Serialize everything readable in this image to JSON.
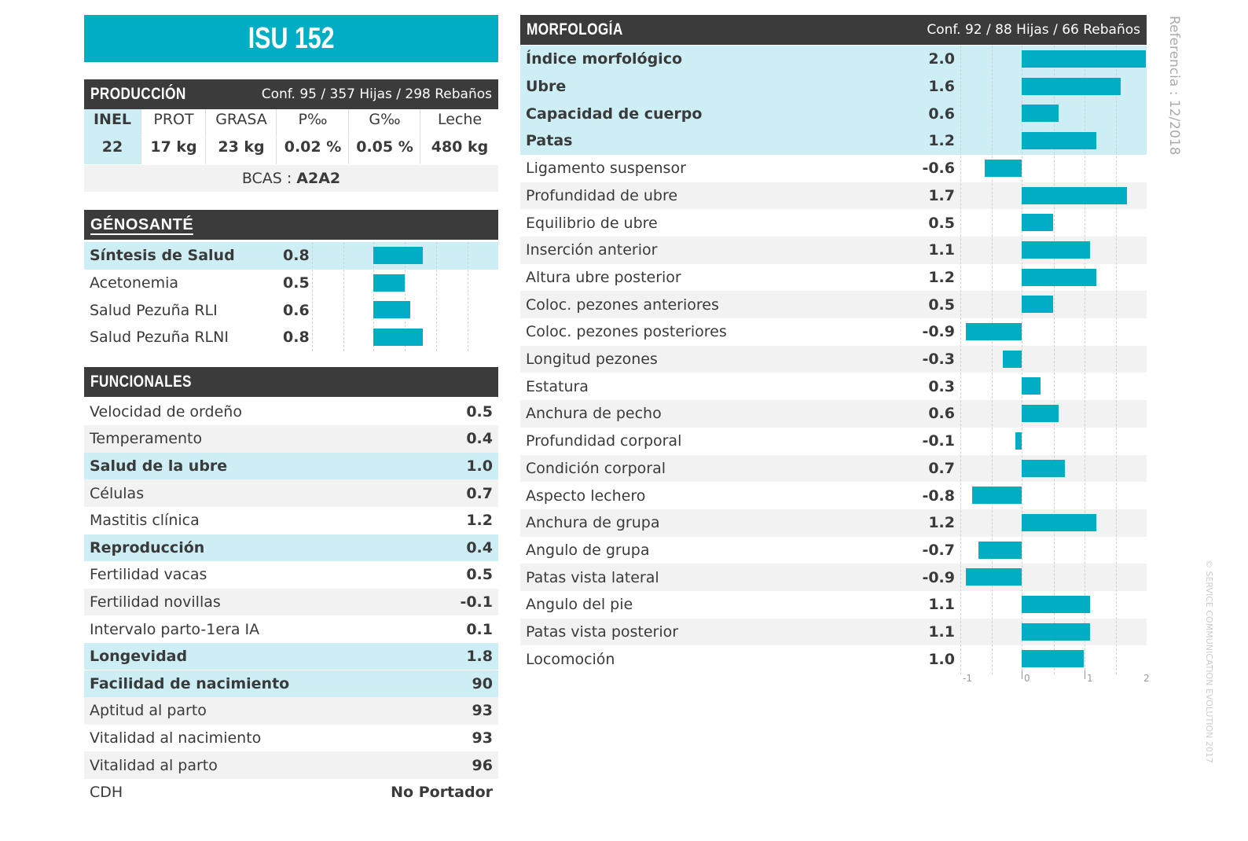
{
  "title": "ISU 152",
  "produccion": {
    "header": "PRODUCCIÓN",
    "conf": "Conf. 95 / 357 Hijas / 298 Rebaños",
    "columns": [
      "INEL",
      "PROT",
      "GRASA",
      "P‰",
      "G‰",
      "Leche"
    ],
    "values": [
      "22",
      "17 kg",
      "23 kg",
      "0.02 %",
      "0.05 %",
      "480 kg"
    ],
    "bcas_label": "BCAS :",
    "bcas_value": "A2A2"
  },
  "genosante": {
    "logo": "GÉNOSANTÉ",
    "rows": [
      {
        "label": "Síntesis de Salud",
        "value": "0.8",
        "num": 0.8,
        "hl": true
      },
      {
        "label": "Acetonemia",
        "value": "0.5",
        "num": 0.5,
        "hl": false
      },
      {
        "label": "Salud Pezuña RLI",
        "value": "0.6",
        "num": 0.6,
        "hl": false
      },
      {
        "label": "Salud Pezuña RLNI",
        "value": "0.8",
        "num": 0.8,
        "hl": false
      }
    ]
  },
  "funcionales": {
    "header": "FUNCIONALES",
    "rows": [
      {
        "label": "Velocidad de ordeño",
        "value": "0.5",
        "hl": false
      },
      {
        "label": "Temperamento",
        "value": "0.4",
        "hl": false
      },
      {
        "label": "Salud de la ubre",
        "value": "1.0",
        "hl": true
      },
      {
        "label": "Células",
        "value": "0.7",
        "hl": false
      },
      {
        "label": "Mastitis clínica",
        "value": "1.2",
        "hl": false
      },
      {
        "label": "Reproducción",
        "value": "0.4",
        "hl": true
      },
      {
        "label": "Fertilidad vacas",
        "value": "0.5",
        "hl": false
      },
      {
        "label": "Fertilidad novillas",
        "value": "-0.1",
        "hl": false
      },
      {
        "label": "Intervalo parto-1era IA",
        "value": "0.1",
        "hl": false
      },
      {
        "label": "Longevidad",
        "value": "1.8",
        "hl": true
      },
      {
        "label": "Facilidad de nacimiento",
        "value": "90",
        "hl": true
      },
      {
        "label": "Aptitud al parto",
        "value": "93",
        "hl": false
      },
      {
        "label": "Vitalidad al nacimiento",
        "value": "93",
        "hl": false
      },
      {
        "label": "Vitalidad al parto",
        "value": "96",
        "hl": false
      },
      {
        "label": "CDH",
        "value": "No Portador",
        "hl": false
      }
    ]
  },
  "morfologia": {
    "header": "MORFOLOGÍA",
    "conf": "Conf. 92 / 88 Hijas / 66 Rebaños",
    "ticks": [
      "-1",
      "0",
      "1",
      "2"
    ],
    "rows": [
      {
        "label": "Índice morfológico",
        "value": "2.0",
        "num": 2.0,
        "hl": true
      },
      {
        "label": "Ubre",
        "value": "1.6",
        "num": 1.6,
        "hl": true
      },
      {
        "label": "Capacidad de cuerpo",
        "value": "0.6",
        "num": 0.6,
        "hl": true
      },
      {
        "label": "Patas",
        "value": "1.2",
        "num": 1.2,
        "hl": true
      },
      {
        "label": "Ligamento suspensor",
        "value": "-0.6",
        "num": -0.6,
        "hl": false
      },
      {
        "label": "Profundidad de ubre",
        "value": "1.7",
        "num": 1.7,
        "hl": false
      },
      {
        "label": "Equilibrio de ubre",
        "value": "0.5",
        "num": 0.5,
        "hl": false
      },
      {
        "label": "Inserción anterior",
        "value": "1.1",
        "num": 1.1,
        "hl": false
      },
      {
        "label": "Altura ubre posterior",
        "value": "1.2",
        "num": 1.2,
        "hl": false
      },
      {
        "label": "Coloc. pezones anteriores",
        "value": "0.5",
        "num": 0.5,
        "hl": false
      },
      {
        "label": "Coloc. pezones posteriores",
        "value": "-0.9",
        "num": -0.9,
        "hl": false
      },
      {
        "label": "Longitud pezones",
        "value": "-0.3",
        "num": -0.3,
        "hl": false
      },
      {
        "label": "Estatura",
        "value": "0.3",
        "num": 0.3,
        "hl": false
      },
      {
        "label": "Anchura de pecho",
        "value": "0.6",
        "num": 0.6,
        "hl": false
      },
      {
        "label": "Profundidad corporal",
        "value": "-0.1",
        "num": -0.1,
        "hl": false
      },
      {
        "label": "Condición corporal",
        "value": "0.7",
        "num": 0.7,
        "hl": false
      },
      {
        "label": "Aspecto lechero",
        "value": "-0.8",
        "num": -0.8,
        "hl": false
      },
      {
        "label": "Anchura de grupa",
        "value": "1.2",
        "num": 1.2,
        "hl": false
      },
      {
        "label": "Angulo de grupa",
        "value": "-0.7",
        "num": -0.7,
        "hl": false
      },
      {
        "label": "Patas vista lateral",
        "value": "-0.9",
        "num": -0.9,
        "hl": false
      },
      {
        "label": "Angulo del pie",
        "value": "1.1",
        "num": 1.1,
        "hl": false
      },
      {
        "label": "Patas vista posterior",
        "value": "1.1",
        "num": 1.1,
        "hl": false
      },
      {
        "label": "Locomoción",
        "value": "1.0",
        "num": 1.0,
        "hl": false
      }
    ]
  },
  "referencia": "Referencia : 12/2018",
  "copyright": "© SERVICE COMMUNICATION EVOLUTION 2017",
  "colors": {
    "accent": "#00aec3",
    "dark": "#3b3b3b",
    "highlight": "#cdeef4"
  }
}
